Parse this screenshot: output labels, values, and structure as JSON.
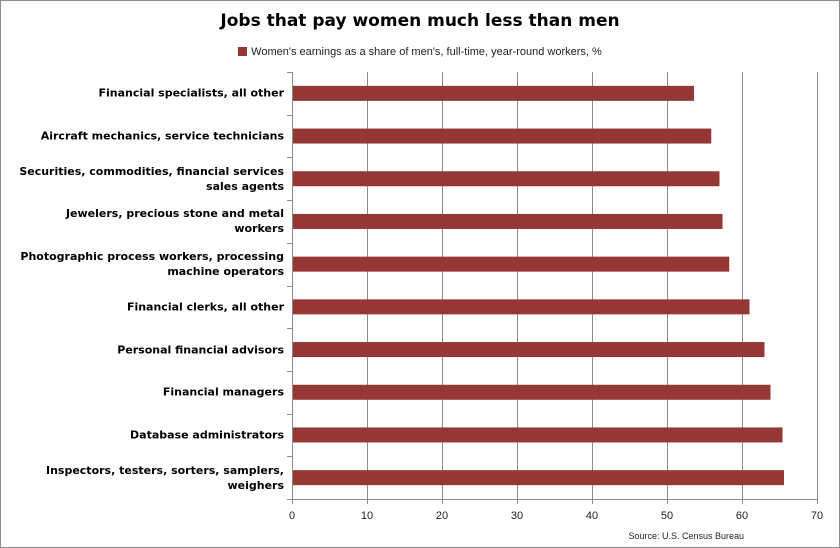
{
  "chart_data": {
    "type": "bar",
    "orientation": "horizontal",
    "title": "Jobs that pay women much less than men",
    "legend": {
      "placement": "top",
      "entries": [
        "Women's earnings as a share of men's, full-time, year-round workers, %"
      ]
    },
    "series": [
      {
        "name": "Women's earnings as a share of men's, full-time, year-round workers, %",
        "color": "#953735",
        "values": [
          53.6,
          55.9,
          57.0,
          57.4,
          58.3,
          61.0,
          63.0,
          63.8,
          65.4,
          65.6
        ]
      }
    ],
    "categories": [
      "Financial specialists, all other",
      "Aircraft mechanics, service technicians",
      "Securities, commodities, financial services sales agents",
      "Jewelers, precious stone and metal workers",
      "Photographic process workers, processing machine operators",
      "Financial clerks, all other",
      "Personal financial advisors",
      "Financial managers",
      "Database administrators",
      "Inspectors, testers, sorters, samplers,  weighers"
    ],
    "xlim": [
      0,
      70
    ],
    "xticks": [
      0,
      10,
      20,
      30,
      40,
      50,
      60,
      70
    ],
    "grid": true,
    "xlabel": "",
    "ylabel": ""
  },
  "source": "Source: U.S. Census Bureau"
}
